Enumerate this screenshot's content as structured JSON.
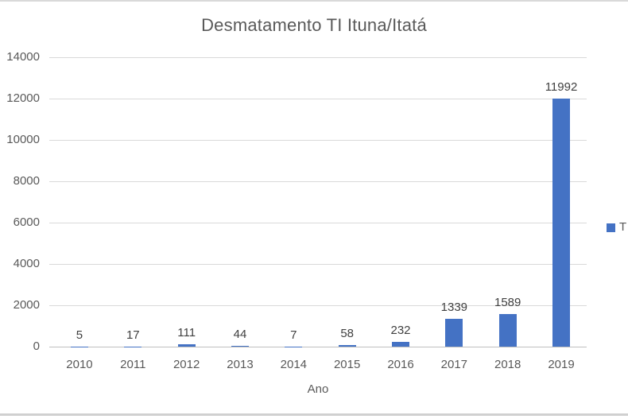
{
  "chart_data": {
    "type": "bar",
    "title": "Desmatamento TI Ituna/Itatá",
    "xlabel": "Ano",
    "ylabel": "",
    "categories": [
      "2010",
      "2011",
      "2012",
      "2013",
      "2014",
      "2015",
      "2016",
      "2017",
      "2018",
      "2019"
    ],
    "values": [
      5,
      17,
      111,
      44,
      7,
      58,
      232,
      1339,
      1589,
      11992
    ],
    "data_labels": [
      "5",
      "17",
      "111",
      "44",
      "7",
      "58",
      "232",
      "1339",
      "1589",
      "11992"
    ],
    "ylim": [
      0,
      14000
    ],
    "ytick_interval": 2000,
    "yticks": [
      "0",
      "2000",
      "4000",
      "6000",
      "8000",
      "10000",
      "12000",
      "14000"
    ],
    "grid": true,
    "legend": {
      "label": "T",
      "position": "right",
      "truncated": true
    },
    "bar_color": "#4472c4"
  },
  "colors": {
    "bar": "#4472c4",
    "gridline": "#d9d9d9",
    "axis_line": "#bfbfbf",
    "text_gray": "#595959",
    "data_label": "#404040",
    "frame_border": "#d0d0d0"
  }
}
